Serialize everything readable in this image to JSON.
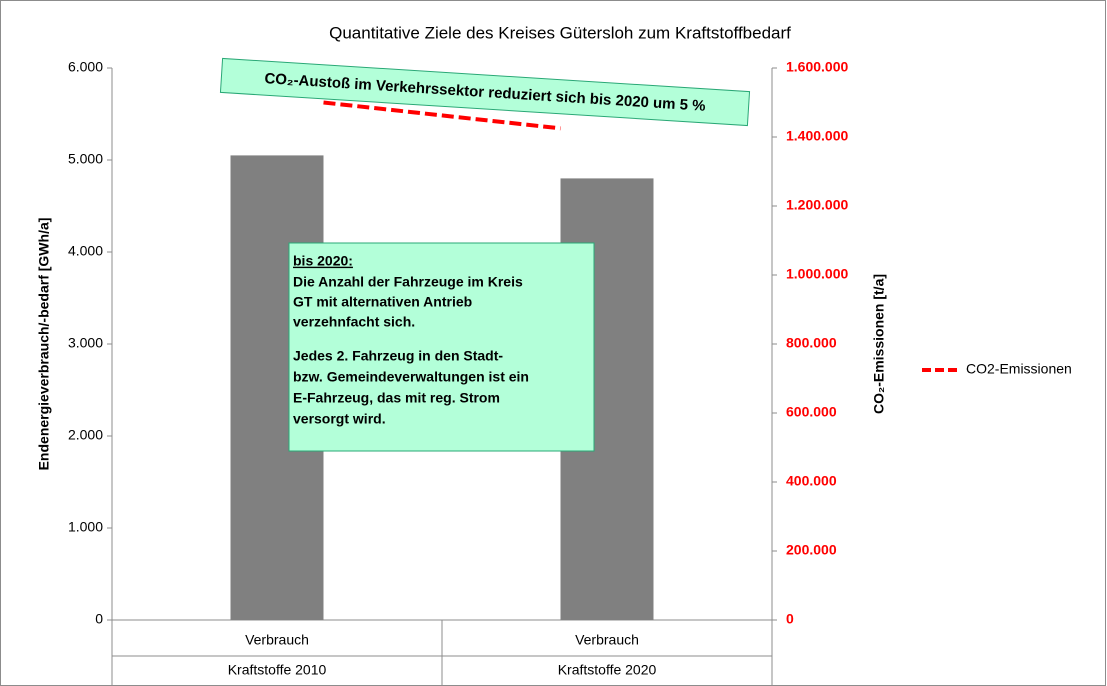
{
  "chart_data": {
    "type": "bar",
    "title": "Quantitative Ziele des Kreises Gütersloh zum Kraftstoffbedarf",
    "categories": [
      "Verbrauch",
      "Verbrauch"
    ],
    "groups": [
      "Kraftstoffe 2010",
      "Kraftstoffe 2020"
    ],
    "series": [
      {
        "color": "#808080",
        "values": [
          5050,
          4800
        ]
      },
      {
        "name": "CO2-Emissionen",
        "color": "#ff0000",
        "values": [
          1500000,
          1425000
        ],
        "axis": "y2",
        "type": "line",
        "dashed": true
      }
    ],
    "ylabel": "Endenergieverbrauch/-bedarf [GWh/a]",
    "y2label": "CO₂-Emissionen [t/a]",
    "ylim": [
      0,
      6000
    ],
    "yticks": [
      0,
      {
        "value": 1000,
        "label": "1.000"
      },
      {
        "value": 2000,
        "label": "2.000"
      },
      {
        "value": 3000,
        "label": "3.000"
      },
      {
        "value": 4000,
        "label": "4.000"
      },
      {
        "value": 5000,
        "label": "5.000"
      },
      {
        "value": 6000,
        "label": "6.000"
      }
    ],
    "y2lim": [
      0,
      1600000
    ],
    "y2ticks": [
      0,
      {
        "value": 200000,
        "label": "200.000"
      },
      {
        "value": 400000,
        "label": "400.000"
      },
      {
        "value": 600000,
        "label": "600.000"
      },
      {
        "value": 800000,
        "label": "800.000"
      },
      {
        "value": 1000000,
        "label": "1.000.000"
      },
      {
        "value": 1200000,
        "label": "1.200.000"
      },
      {
        "value": 1400000,
        "label": "1.400.000"
      },
      {
        "value": 1600000,
        "label": "1.600.000"
      }
    ],
    "y2tick_color": "#ff0000",
    "legend": "right",
    "annotations": [
      {
        "lines": [
          "CO₂-Austoß im Verkehrssektor reduziert sich bis 2020 um 5 %"
        ]
      },
      {
        "lines": [
          "bis 2020:",
          "Die Anzahl der Fahrzeuge im Kreis",
          "GT mit alternativen Antrieb",
          "verzehnfacht sich.",
          "Jedes 2. Fahrzeug in den Stadt-",
          "bzw. Gemeindeverwaltungen ist ein",
          "E-Fahrzeug, das mit reg. Strom",
          "versorgt wird."
        ]
      }
    ]
  }
}
